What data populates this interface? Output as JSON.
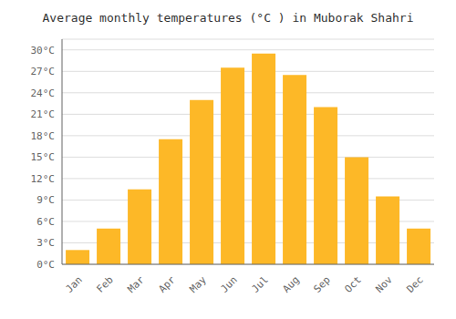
{
  "chart_data": {
    "type": "bar",
    "title": "Average monthly temperatures (°C ) in Muborak Shahri",
    "categories": [
      "Jan",
      "Feb",
      "Mar",
      "Apr",
      "May",
      "Jun",
      "Jul",
      "Aug",
      "Sep",
      "Oct",
      "Nov",
      "Dec"
    ],
    "values": [
      2,
      5,
      10.5,
      17.5,
      23,
      27.5,
      29.5,
      26.5,
      22,
      15,
      9.5,
      5
    ],
    "color": "#FDB827",
    "ylim": [
      0,
      31.5
    ],
    "yticks": [
      {
        "value": 0,
        "label": "0°C"
      },
      {
        "value": 3,
        "label": "3°C"
      },
      {
        "value": 6,
        "label": "6°C"
      },
      {
        "value": 9,
        "label": "9°C"
      },
      {
        "value": 12,
        "label": "12°C"
      },
      {
        "value": 15,
        "label": "15°C"
      },
      {
        "value": 18,
        "label": "18°C"
      },
      {
        "value": 21,
        "label": "21°C"
      },
      {
        "value": 24,
        "label": "24°C"
      },
      {
        "value": 27,
        "label": "27°C"
      },
      {
        "value": 30,
        "label": "30°C"
      }
    ],
    "grid": true
  }
}
